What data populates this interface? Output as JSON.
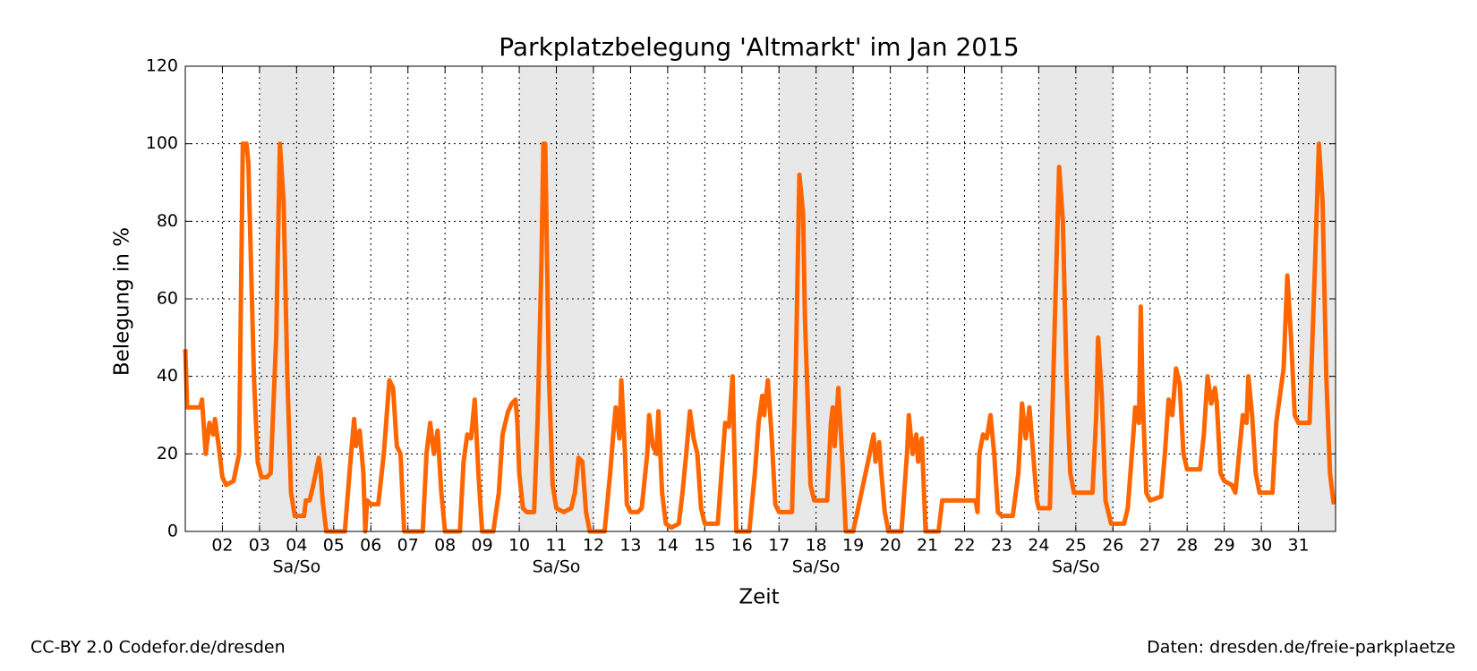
{
  "chart_data": {
    "type": "line",
    "title": "Parkplatzbelegung 'Altmarkt' im Jan 2015",
    "x_label": "Zeit",
    "y_label": "Belegung in %",
    "footer_left": "CC-BY 2.0 Codefor.de/dresden",
    "footer_right": "Daten: dresden.de/freie-parkplaetze",
    "xlim": [
      1,
      32
    ],
    "ylim": [
      0,
      120
    ],
    "xticks": [
      {
        "value": 2,
        "label": "02"
      },
      {
        "value": 3,
        "label": "03"
      },
      {
        "value": 4,
        "label": "04"
      },
      {
        "value": 5,
        "label": "05"
      },
      {
        "value": 6,
        "label": "06"
      },
      {
        "value": 7,
        "label": "07"
      },
      {
        "value": 8,
        "label": "08"
      },
      {
        "value": 9,
        "label": "09"
      },
      10,
      11,
      12,
      13,
      14,
      15,
      16,
      17,
      18,
      19,
      20,
      21,
      22,
      23,
      24,
      25,
      26,
      27,
      28,
      29,
      30,
      31
    ],
    "yticks": [
      0,
      20,
      40,
      60,
      80,
      100,
      120
    ],
    "grid": true,
    "weekends": [
      {
        "start": 3,
        "end": 5,
        "label": "Sa/So"
      },
      {
        "start": 10,
        "end": 12,
        "label": "Sa/So"
      },
      {
        "start": 17,
        "end": 19,
        "label": "Sa/So"
      },
      {
        "start": 24,
        "end": 26,
        "label": "Sa/So"
      },
      {
        "start": 31,
        "end": 32
      }
    ],
    "series": [
      {
        "name": "Altmarkt",
        "color": "#ff6600",
        "x": [
          1.0,
          1.05,
          1.4,
          1.45,
          1.55,
          1.65,
          1.75,
          1.8,
          1.9,
          2.0,
          2.1,
          2.3,
          2.45,
          2.55,
          2.65,
          2.7,
          2.85,
          2.95,
          3.05,
          3.2,
          3.3,
          3.45,
          3.55,
          3.65,
          3.75,
          3.85,
          3.95,
          4.2,
          4.25,
          4.35,
          4.45,
          4.6,
          4.65,
          4.7,
          4.8,
          5.3,
          5.45,
          5.55,
          5.6,
          5.7,
          5.8,
          5.85,
          5.9,
          6.0,
          6.2,
          6.35,
          6.5,
          6.6,
          6.7,
          6.8,
          6.9,
          7.4,
          7.5,
          7.6,
          7.7,
          7.8,
          7.9,
          8.0,
          8.4,
          8.5,
          8.6,
          8.7,
          8.8,
          8.9,
          9.0,
          9.3,
          9.45,
          9.55,
          9.7,
          9.8,
          9.9,
          9.95,
          10.0,
          10.1,
          10.2,
          10.4,
          10.5,
          10.6,
          10.65,
          10.7,
          10.8,
          10.9,
          11.0,
          11.2,
          11.4,
          11.5,
          11.6,
          11.7,
          11.8,
          11.9,
          12.3,
          12.45,
          12.55,
          12.6,
          12.7,
          12.75,
          12.8,
          12.85,
          12.9,
          13.0,
          13.2,
          13.3,
          13.45,
          13.5,
          13.6,
          13.7,
          13.75,
          13.85,
          13.95,
          14.1,
          14.3,
          14.4,
          14.5,
          14.6,
          14.7,
          14.8,
          14.9,
          15.0,
          15.35,
          15.45,
          15.55,
          15.65,
          15.75,
          15.85,
          16.2,
          16.35,
          16.45,
          16.55,
          16.6,
          16.7,
          16.8,
          16.9,
          17.0,
          17.35,
          17.45,
          17.55,
          17.65,
          17.7,
          17.85,
          17.95,
          18.3,
          18.4,
          18.45,
          18.5,
          18.6,
          18.7,
          18.8,
          19.0,
          19.4,
          19.55,
          19.6,
          19.7,
          19.75,
          19.85,
          19.95,
          20.3,
          20.45,
          20.5,
          20.6,
          20.7,
          20.75,
          20.85,
          20.9,
          20.95,
          21.3,
          21.4,
          22.3,
          22.35,
          22.4,
          22.5,
          22.6,
          22.7,
          22.8,
          22.9,
          23.0,
          23.3,
          23.45,
          23.55,
          23.65,
          23.75,
          23.85,
          23.95,
          24.0,
          24.3,
          24.45,
          24.55,
          24.65,
          24.75,
          24.85,
          24.95,
          25.3,
          25.45,
          25.55,
          25.6,
          25.7,
          25.8,
          25.95,
          26.3,
          26.4,
          26.55,
          26.6,
          26.7,
          26.75,
          26.8,
          26.9,
          27.0,
          27.3,
          27.4,
          27.5,
          27.6,
          27.7,
          27.8,
          27.9,
          28.0,
          28.35,
          28.45,
          28.55,
          28.65,
          28.75,
          28.8,
          28.9,
          29.0,
          29.2,
          29.3,
          29.4,
          29.5,
          29.6,
          29.65,
          29.75,
          29.85,
          29.95,
          30.3,
          30.4,
          30.5,
          30.6,
          30.7,
          30.8,
          30.9,
          31.0,
          31.3,
          31.45,
          31.55,
          31.65,
          31.75,
          31.85,
          31.95
        ],
        "values": [
          47,
          32,
          32,
          34,
          20,
          28,
          25,
          29,
          22,
          14,
          12,
          13,
          20,
          100,
          100,
          95,
          40,
          18,
          14,
          14,
          15,
          50,
          100,
          85,
          40,
          10,
          4,
          4,
          8,
          8,
          12,
          19,
          15,
          8,
          0,
          0,
          18,
          29,
          22,
          26,
          15,
          0,
          8,
          7,
          7,
          20,
          39,
          37,
          22,
          20,
          0,
          0,
          20,
          28,
          20,
          26,
          10,
          0,
          0,
          18,
          25,
          24,
          34,
          15,
          0,
          0,
          10,
          25,
          31,
          33,
          34,
          28,
          15,
          6,
          5,
          5,
          30,
          70,
          100,
          100,
          40,
          12,
          6,
          5,
          6,
          10,
          19,
          18,
          5,
          0,
          0,
          15,
          27,
          32,
          24,
          39,
          30,
          20,
          7,
          5,
          5,
          6,
          20,
          30,
          22,
          20,
          31,
          10,
          2,
          1,
          2,
          10,
          20,
          31,
          24,
          20,
          6,
          2,
          2,
          15,
          28,
          27,
          40,
          0,
          0,
          15,
          28,
          35,
          30,
          39,
          25,
          7,
          5,
          5,
          40,
          92,
          82,
          55,
          12,
          8,
          8,
          28,
          32,
          22,
          37,
          20,
          0,
          0,
          18,
          25,
          18,
          23,
          16,
          5,
          0,
          0,
          20,
          30,
          20,
          25,
          18,
          24,
          12,
          0,
          0,
          8,
          8,
          5,
          20,
          25,
          24,
          30,
          20,
          5,
          4,
          4,
          15,
          33,
          24,
          32,
          20,
          8,
          6,
          6,
          60,
          94,
          80,
          40,
          15,
          10,
          10,
          10,
          30,
          50,
          35,
          8,
          2,
          2,
          6,
          25,
          32,
          28,
          58,
          35,
          10,
          8,
          9,
          20,
          34,
          30,
          42,
          38,
          20,
          16,
          16,
          25,
          40,
          33,
          37,
          33,
          15,
          13,
          12,
          10,
          20,
          30,
          28,
          40,
          30,
          15,
          10,
          10,
          28,
          35,
          42,
          66,
          50,
          30,
          28,
          28,
          70,
          100,
          85,
          40,
          15,
          7
        ]
      }
    ]
  }
}
